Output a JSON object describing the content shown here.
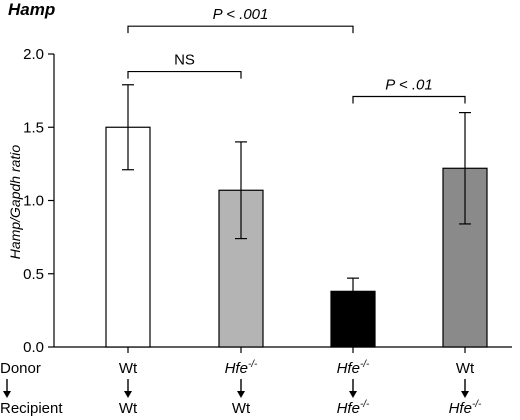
{
  "chart_data": {
    "type": "bar",
    "title": "Hamp",
    "ylabel": "Hamp/Gapdh ratio",
    "ylim": [
      0,
      2.0
    ],
    "yticks": [
      "0.0",
      "0.5",
      "1.0",
      "1.5",
      "2.0"
    ],
    "grid": false,
    "bars": [
      {
        "donor": "Wt",
        "recipient": "Wt",
        "value": 1.5,
        "error": 0.29,
        "color": "#ffffff"
      },
      {
        "donor": "Hfe",
        "recipient": "Wt",
        "value": 1.07,
        "error": 0.33,
        "color": "#b4b4b4"
      },
      {
        "donor": "Hfe",
        "recipient": "Hfe",
        "value": 0.38,
        "error": 0.09,
        "color": "#000000"
      },
      {
        "donor": "Wt",
        "recipient": "Hfe",
        "value": 1.22,
        "error": 0.38,
        "color": "#8a8a8a"
      }
    ],
    "superscript": "-/-",
    "row_labels": {
      "donor": "Donor",
      "recipient": "Recipient"
    },
    "annotations": [
      {
        "from": 0,
        "to": 2,
        "text": "P < .001",
        "italic": true,
        "level": 2.19
      },
      {
        "from": 0,
        "to": 1,
        "text": "NS",
        "italic": false,
        "level": 1.88
      },
      {
        "from": 2,
        "to": 3,
        "text": "P < .01",
        "italic": true,
        "level": 1.71
      }
    ]
  }
}
